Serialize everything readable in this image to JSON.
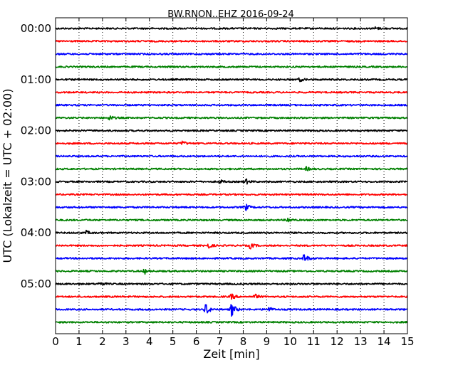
{
  "chart_data": {
    "type": "line",
    "title": "BW.RNON..EHZ 2016-09-24",
    "xlabel": "Zeit  [min]",
    "ylabel": "UTC (Lokalzeit = UTC + 02:00)",
    "xlim": [
      0,
      15
    ],
    "x_ticks": [
      "0",
      "1",
      "2",
      "3",
      "4",
      "5",
      "6",
      "7",
      "8",
      "9",
      "10",
      "11",
      "12",
      "13",
      "14",
      "15"
    ],
    "y_ticks": [
      {
        "label": "00:00",
        "row": 0
      },
      {
        "label": "01:00",
        "row": 4
      },
      {
        "label": "02:00",
        "row": 8
      },
      {
        "label": "03:00",
        "row": 12
      },
      {
        "label": "04:00",
        "row": 16
      },
      {
        "label": "05:00",
        "row": 20
      }
    ],
    "grid": "vertical dotted",
    "row_minutes": 15,
    "color_cycle": [
      "#000000",
      "#ff0000",
      "#0000ff",
      "#008000"
    ],
    "rows": 24,
    "events": [
      {
        "row": 0,
        "minute": 13.6,
        "amp": 0.25
      },
      {
        "row": 4,
        "minute": 10.4,
        "amp": 0.3
      },
      {
        "row": 7,
        "minute": 2.3,
        "amp": 0.45
      },
      {
        "row": 9,
        "minute": 5.4,
        "amp": 0.35
      },
      {
        "row": 11,
        "minute": 10.7,
        "amp": 0.3
      },
      {
        "row": 12,
        "minute": 7.0,
        "amp": 0.3
      },
      {
        "row": 12,
        "minute": 8.1,
        "amp": 0.45
      },
      {
        "row": 14,
        "minute": 8.1,
        "amp": 0.55
      },
      {
        "row": 15,
        "minute": 9.9,
        "amp": 0.35
      },
      {
        "row": 16,
        "minute": 1.3,
        "amp": 0.3
      },
      {
        "row": 17,
        "minute": 6.5,
        "amp": 0.45
      },
      {
        "row": 17,
        "minute": 8.3,
        "amp": 0.5
      },
      {
        "row": 18,
        "minute": 10.6,
        "amp": 0.75
      },
      {
        "row": 19,
        "minute": 3.8,
        "amp": 0.4
      },
      {
        "row": 20,
        "minute": 1.9,
        "amp": 0.3
      },
      {
        "row": 21,
        "minute": 7.5,
        "amp": 0.45
      },
      {
        "row": 21,
        "minute": 8.5,
        "amp": 0.4
      },
      {
        "row": 22,
        "minute": 6.4,
        "amp": 1.0
      },
      {
        "row": 22,
        "minute": 7.5,
        "amp": 1.2
      },
      {
        "row": 22,
        "minute": 9.1,
        "amp": 0.35
      }
    ]
  }
}
